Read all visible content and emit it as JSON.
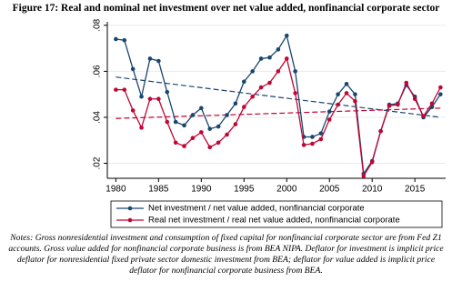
{
  "chart_data": {
    "type": "line",
    "title": "Figure 17: Real and nominal net investment over net value added, nonfinancial corporate sector",
    "x": [
      1980,
      1981,
      1982,
      1983,
      1984,
      1985,
      1986,
      1987,
      1988,
      1989,
      1990,
      1991,
      1992,
      1993,
      1994,
      1995,
      1996,
      1997,
      1998,
      1999,
      2000,
      2001,
      2002,
      2003,
      2004,
      2005,
      2006,
      2007,
      2008,
      2009,
      2010,
      2011,
      2012,
      2013,
      2014,
      2015,
      2016,
      2017,
      2018
    ],
    "series": [
      {
        "name": "Net investment / net value added, nonfinancial corporate",
        "color": "#1a476f",
        "values": [
          0.074,
          0.0735,
          0.061,
          0.049,
          0.0655,
          0.0645,
          0.051,
          0.038,
          0.0365,
          0.041,
          0.044,
          0.035,
          0.036,
          0.041,
          0.046,
          0.0555,
          0.06,
          0.0655,
          0.066,
          0.0695,
          0.0755,
          0.06,
          0.0315,
          0.0315,
          0.033,
          0.0425,
          0.05,
          0.0545,
          0.05,
          0.0155,
          0.021,
          0.034,
          0.0455,
          0.046,
          0.054,
          0.049,
          0.04,
          0.0445,
          0.05
        ]
      },
      {
        "name": "Real net investment / real net value added, nonfinancial corporate",
        "color": "#c10534",
        "values": [
          0.052,
          0.052,
          0.043,
          0.0355,
          0.048,
          0.048,
          0.038,
          0.029,
          0.0275,
          0.031,
          0.0335,
          0.027,
          0.029,
          0.0325,
          0.037,
          0.0445,
          0.049,
          0.053,
          0.055,
          0.06,
          0.0655,
          0.0505,
          0.028,
          0.0285,
          0.0305,
          0.039,
          0.0455,
          0.0505,
          0.047,
          0.0145,
          0.0205,
          0.034,
          0.045,
          0.0455,
          0.055,
          0.048,
          0.0405,
          0.046,
          0.053
        ]
      }
    ],
    "trend_lines": [
      {
        "x": [
          1980,
          2018
        ],
        "values": [
          0.0575,
          0.04
        ],
        "color": "#1a476f"
      },
      {
        "x": [
          1980,
          2018
        ],
        "values": [
          0.0395,
          0.044
        ],
        "color": "#c10534"
      }
    ],
    "xlim": [
      1979,
      2018.6
    ],
    "xticks": [
      1980,
      1985,
      1990,
      1995,
      2000,
      2005,
      2010,
      2015
    ],
    "ylim": [
      0.0135,
      0.0815
    ],
    "yticks": [
      {
        "value": 0.02,
        "label": ".02"
      },
      {
        "value": 0.04,
        "label": ".04"
      },
      {
        "value": 0.06,
        "label": ".06"
      },
      {
        "value": 0.08,
        "label": ".08"
      }
    ],
    "grid": true
  },
  "notes": "Notes: Gross nonresidential investment and consumption of fixed capital for nonfinancial corporate sector are from Fed Z1 accounts. Gross value added for nonfinancial corporate business is from BEA NIPA. Deflator for investment is implicit price deflator for nonresidential fixed private sector domestic investment from BEA; deflator for value added is implicit price deflator for nonfinancial corporate business from BEA."
}
